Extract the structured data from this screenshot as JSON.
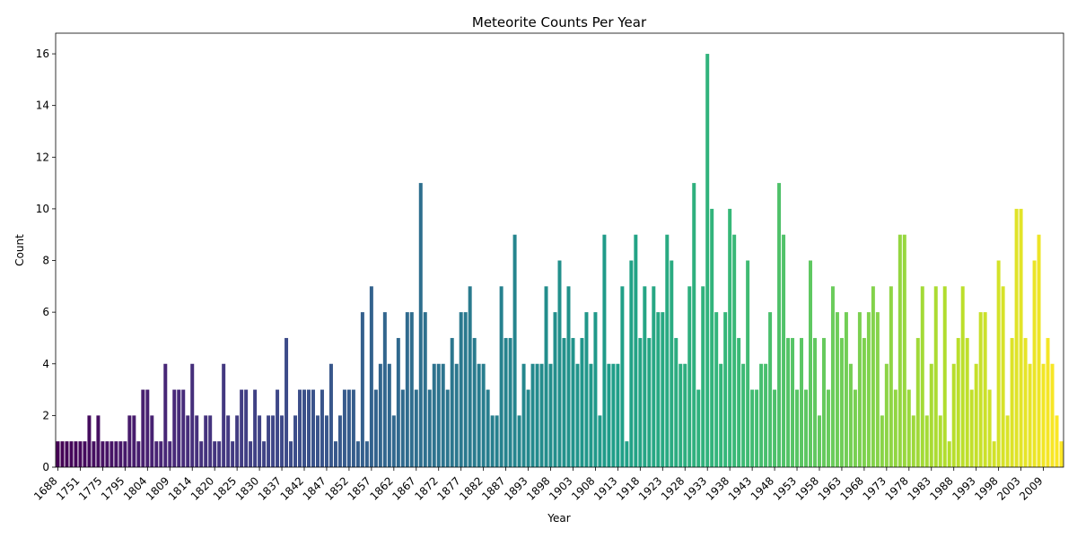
{
  "chart_data": {
    "type": "bar",
    "title": "Meteorite Counts Per Year",
    "xlabel": "Year",
    "ylabel": "Count",
    "ylim": [
      0,
      16.8
    ],
    "y_ticks": [
      0,
      2,
      4,
      6,
      8,
      10,
      12,
      14,
      16
    ],
    "x_tick_labels": [
      "1688",
      "1751",
      "1775",
      "1795",
      "1804",
      "1809",
      "1814",
      "1820",
      "1825",
      "1830",
      "1837",
      "1842",
      "1847",
      "1852",
      "1857",
      "1862",
      "1867",
      "1872",
      "1877",
      "1882",
      "1887",
      "1893",
      "1898",
      "1903",
      "1908",
      "1913",
      "1918",
      "1923",
      "1928",
      "1933",
      "1938",
      "1943",
      "1948",
      "1953",
      "1958",
      "1963",
      "1968",
      "1973",
      "1978",
      "1983",
      "1988",
      "1993",
      "1998",
      "2003",
      "2009"
    ],
    "x_tick_every": 5,
    "colormap": "viridis",
    "values": [
      1,
      1,
      1,
      1,
      1,
      1,
      1,
      2,
      1,
      2,
      1,
      1,
      1,
      1,
      1,
      1,
      2,
      2,
      1,
      3,
      3,
      2,
      1,
      1,
      4,
      1,
      3,
      3,
      3,
      2,
      4,
      2,
      1,
      2,
      2,
      1,
      1,
      4,
      2,
      1,
      2,
      3,
      3,
      1,
      3,
      2,
      1,
      2,
      2,
      3,
      2,
      5,
      1,
      2,
      3,
      3,
      3,
      3,
      2,
      3,
      2,
      4,
      1,
      2,
      3,
      3,
      3,
      1,
      6,
      1,
      7,
      3,
      4,
      6,
      4,
      2,
      5,
      3,
      6,
      6,
      3,
      11,
      6,
      3,
      4,
      4,
      4,
      3,
      5,
      4,
      6,
      6,
      7,
      5,
      4,
      4,
      3,
      2,
      2,
      7,
      5,
      5,
      9,
      2,
      4,
      3,
      4,
      4,
      4,
      7,
      4,
      6,
      8,
      5,
      7,
      5,
      4,
      5,
      6,
      4,
      6,
      2,
      9,
      4,
      4,
      4,
      7,
      1,
      8,
      9,
      5,
      7,
      5,
      7,
      6,
      6,
      9,
      8,
      5,
      4,
      4,
      7,
      11,
      3,
      7,
      16,
      10,
      6,
      4,
      6,
      10,
      9,
      5,
      4,
      8,
      3,
      3,
      4,
      4,
      6,
      3,
      11,
      9,
      5,
      5,
      3,
      5,
      3,
      8,
      5,
      2,
      5,
      3,
      7,
      6,
      5,
      6,
      4,
      3,
      6,
      5,
      6,
      7,
      6,
      2,
      4,
      7,
      3,
      9,
      9,
      3,
      2,
      5,
      7,
      2,
      4,
      7,
      2,
      7,
      1,
      4,
      5,
      7,
      5,
      3,
      4,
      6,
      6,
      3,
      1,
      8,
      7,
      2,
      5,
      10,
      10,
      5,
      4,
      8,
      9,
      4,
      5,
      4,
      2,
      1
    ]
  }
}
